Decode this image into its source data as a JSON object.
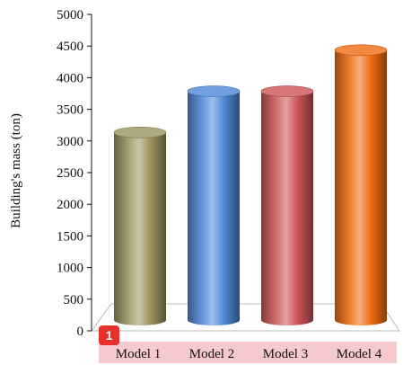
{
  "chart_data": {
    "type": "bar",
    "title": "",
    "xlabel": "",
    "ylabel": "Building's mass (ton)",
    "ylim": [
      0,
      5000
    ],
    "yticks": [
      0,
      500,
      1000,
      1500,
      2000,
      2500,
      3000,
      3500,
      4000,
      4500,
      5000
    ],
    "categories": [
      "Model 1",
      "Model 2",
      "Model 3",
      "Model 4"
    ],
    "values": [
      3220,
      3870,
      3870,
      4520
    ],
    "colors": [
      "#9c9560",
      "#4f88d6",
      "#cc5558",
      "#f06b10"
    ],
    "grid": false,
    "style": "3d-cylinder"
  },
  "annotation": {
    "badge_text": "1",
    "badge_color": "#e8302b",
    "highlight_color": "#f6c9cc"
  }
}
